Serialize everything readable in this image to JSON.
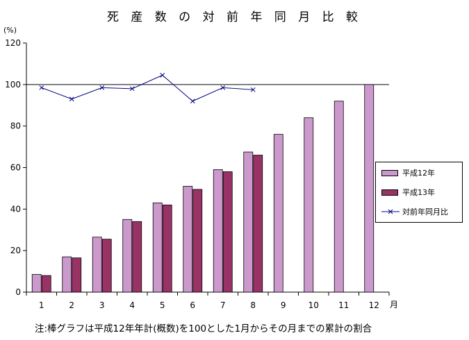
{
  "title": "死 産 数 の 対 前 年 同 月 比 較",
  "note": "注:棒グラフは平成12年年計(概数)を100とした1月からその月までの累計の割合",
  "colors": {
    "h12_fill": "#cc99cc",
    "h13_fill": "#993366",
    "line": "#000080"
  },
  "chart_data": {
    "type": "bar",
    "ylabel": "(%)",
    "xlabel": "月",
    "ylim": [
      0,
      120
    ],
    "yticks": [
      0,
      20,
      40,
      60,
      80,
      100,
      120
    ],
    "categories": [
      "1",
      "2",
      "3",
      "4",
      "5",
      "6",
      "7",
      "8",
      "9",
      "10",
      "11",
      "12"
    ],
    "reference_line": 100,
    "grid": false,
    "legend_position": "right",
    "series": [
      {
        "name": "平成12年",
        "kind": "bar",
        "values": [
          8.5,
          17,
          26.5,
          35,
          43,
          51,
          59,
          67.5,
          76,
          84,
          92,
          100
        ]
      },
      {
        "name": "平成13年",
        "kind": "bar",
        "values": [
          8,
          16.5,
          25.5,
          34,
          42,
          49.5,
          58,
          66,
          null,
          null,
          null,
          null
        ]
      },
      {
        "name": "対前年同月比",
        "kind": "line",
        "values": [
          98.5,
          93,
          98.5,
          98,
          104.5,
          92,
          98.5,
          97.5,
          null,
          null,
          null,
          null
        ]
      }
    ]
  }
}
